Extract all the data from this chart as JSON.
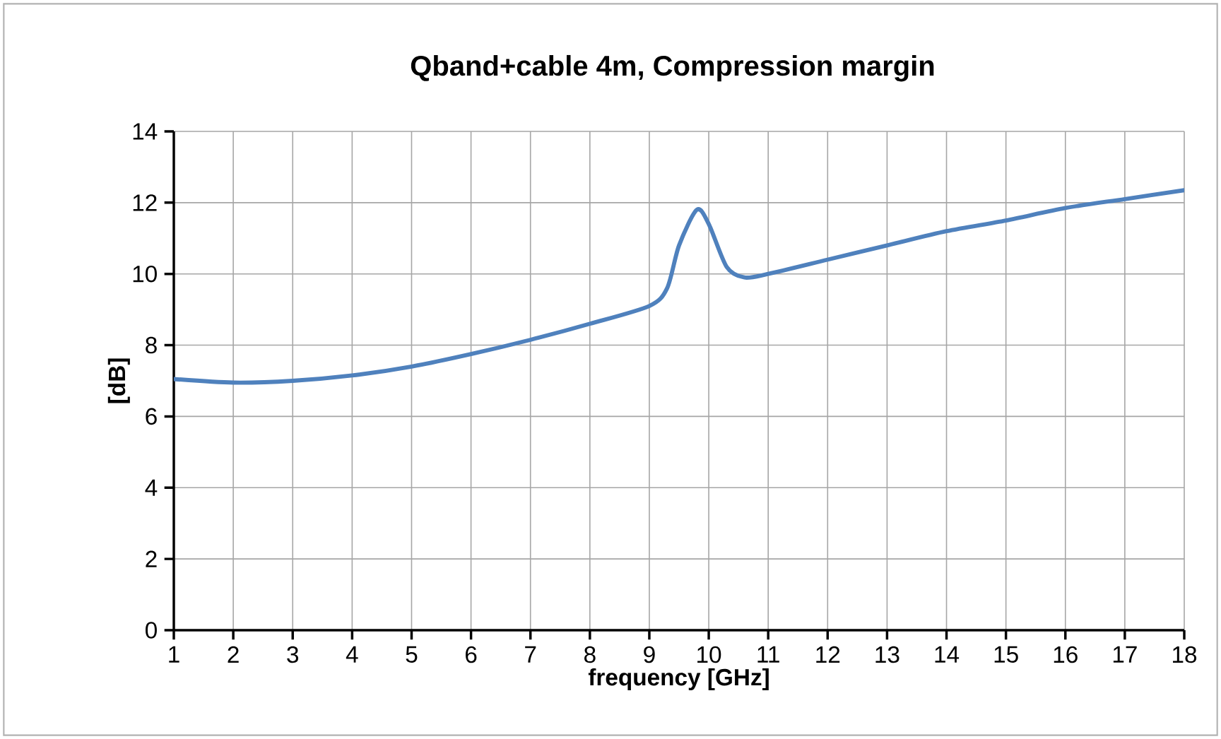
{
  "chart_data": {
    "type": "line",
    "title": "Qband+cable  4m, Compression margin",
    "xlabel": "frequency [GHz]",
    "ylabel": "[dB]",
    "x": [
      1,
      2,
      3,
      4,
      5,
      6,
      7,
      8,
      9,
      9.3,
      9.5,
      9.8,
      10.0,
      10.3,
      10.6,
      11,
      12,
      13,
      14,
      15,
      16,
      17,
      18
    ],
    "series": [
      {
        "color": "#4f81bd",
        "values": [
          7.05,
          6.95,
          7.0,
          7.15,
          7.4,
          7.75,
          8.15,
          8.6,
          9.1,
          9.6,
          10.8,
          11.8,
          11.4,
          10.2,
          9.9,
          10.0,
          10.4,
          10.8,
          11.2,
          11.5,
          11.85,
          12.1,
          12.35
        ]
      }
    ],
    "xlim": [
      1,
      18
    ],
    "ylim": [
      0,
      14
    ],
    "xticks": [
      1,
      2,
      3,
      4,
      5,
      6,
      7,
      8,
      9,
      10,
      11,
      12,
      13,
      14,
      15,
      16,
      17,
      18
    ],
    "yticks": [
      0,
      2,
      4,
      6,
      8,
      10,
      12,
      14
    ],
    "grid": true,
    "marker": "none",
    "line_style": "solid"
  }
}
